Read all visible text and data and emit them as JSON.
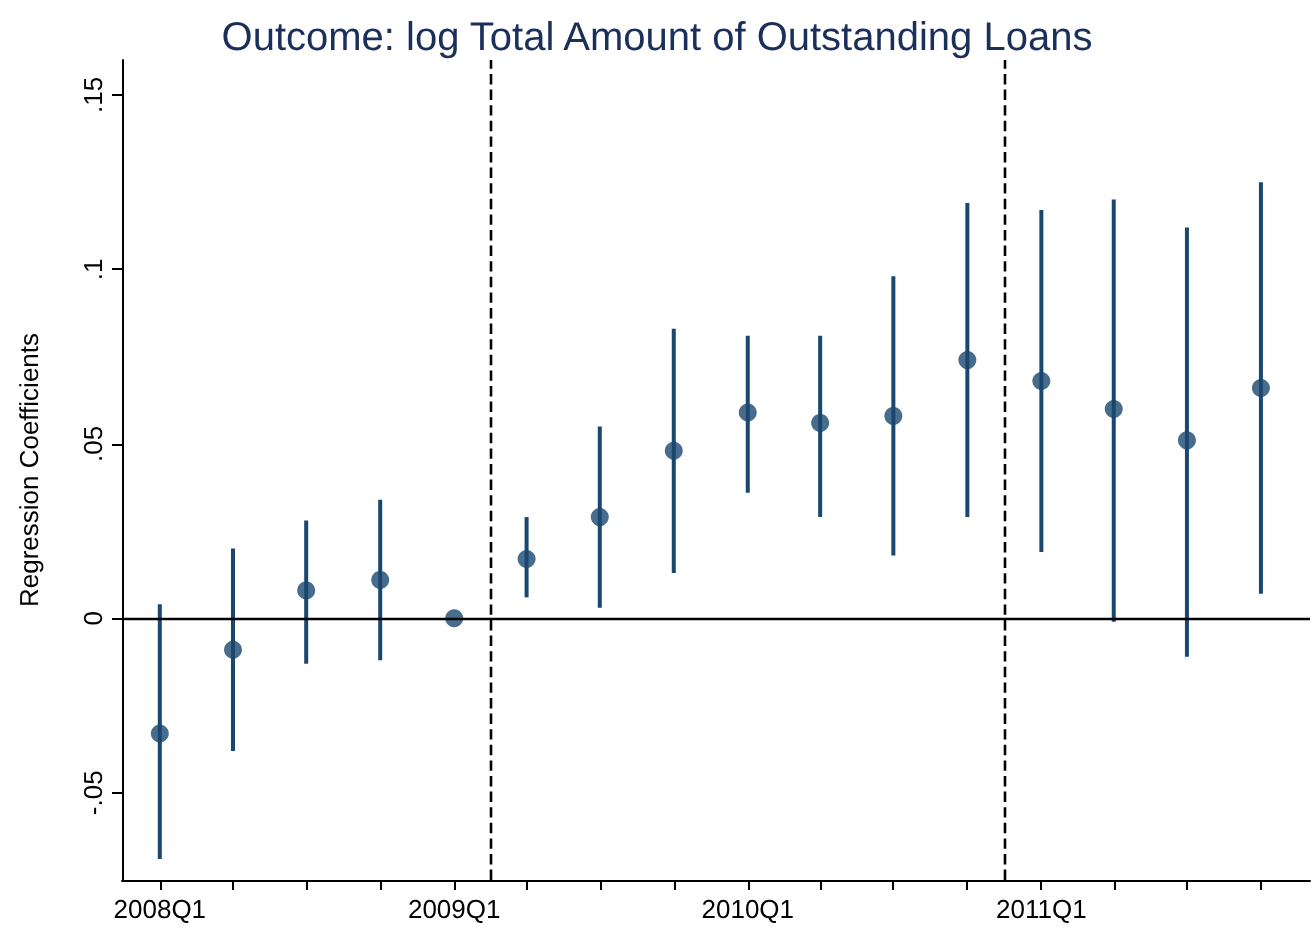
{
  "chart_data": {
    "type": "scatter",
    "title": "Outcome: log Total Amount of Outstanding Loans",
    "ylabel": "Regression Coefficients",
    "x": [
      "2008-01",
      "2008-04",
      "2008-07",
      "2008-10",
      "2009-01",
      "2009-04",
      "2009-07",
      "2009-10",
      "2010-01",
      "2010-04",
      "2010-07",
      "2010-10",
      "2011-01",
      "2011-04",
      "2011-07",
      "2011-10"
    ],
    "series": [
      {
        "color": "#1a476f",
        "values": [
          -0.033,
          -0.009,
          0.008,
          0.011,
          0,
          0.017,
          0.029,
          0.048,
          0.059,
          0.056,
          0.058,
          0.074,
          0.068,
          0.06,
          0.051,
          0.066
        ],
        "errors": [
          [
            -0.069,
            0.004
          ],
          [
            -0.038,
            0.02
          ],
          [
            -0.013,
            0.028
          ],
          [
            -0.012,
            0.034
          ],
          null,
          [
            0.006,
            0.029
          ],
          [
            0.003,
            0.055
          ],
          [
            0.013,
            0.083
          ],
          [
            0.036,
            0.081
          ],
          [
            0.029,
            0.081
          ],
          [
            0.018,
            0.098
          ],
          [
            0.029,
            0.119
          ],
          [
            0.019,
            0.117
          ],
          [
            -0.001,
            0.12
          ],
          [
            -0.011,
            0.112
          ],
          [
            0.007,
            0.125
          ]
        ]
      }
    ],
    "xlim": [
      "2007-11-15",
      "2011-12-01"
    ],
    "xticks": [
      {
        "value": "2008-01",
        "label": "2008Q1"
      },
      {
        "value": "2008-04",
        "label": null
      },
      {
        "value": "2008-07",
        "label": null
      },
      {
        "value": "2008-10",
        "label": null
      },
      {
        "value": "2009-01",
        "label": "2009Q1"
      },
      {
        "value": "2009-04",
        "label": null
      },
      {
        "value": "2009-07",
        "label": null
      },
      {
        "value": "2009-10",
        "label": null
      },
      {
        "value": "2010-01",
        "label": "2010Q1"
      },
      {
        "value": "2010-04",
        "label": null
      },
      {
        "value": "2010-07",
        "label": null
      },
      {
        "value": "2010-10",
        "label": null
      },
      {
        "value": "2011-01",
        "label": "2011Q1"
      },
      {
        "value": "2011-04",
        "label": null
      },
      {
        "value": "2011-07",
        "label": null
      },
      {
        "value": "2011-10",
        "label": null
      }
    ],
    "ylim": [
      -0.075,
      0.16
    ],
    "yticks": [
      {
        "value": -0.05,
        "label": "-.05"
      },
      {
        "value": 0,
        "label": "0"
      },
      {
        "value": 0.05,
        "label": ".05"
      },
      {
        "value": 0.1,
        "label": ".1"
      },
      {
        "value": 0.15,
        "label": ".15"
      }
    ],
    "ref_lines": [
      {
        "axis": "y",
        "value": 0,
        "color": "#000000",
        "line_style": "solid"
      },
      {
        "axis": "x",
        "value": "2009-02-15",
        "color": "#000000",
        "line_style": "dashed"
      },
      {
        "axis": "x",
        "value": "2010-11-15",
        "color": "#000000",
        "line_style": "dashed"
      }
    ],
    "marker": "circle",
    "grid": false
  }
}
